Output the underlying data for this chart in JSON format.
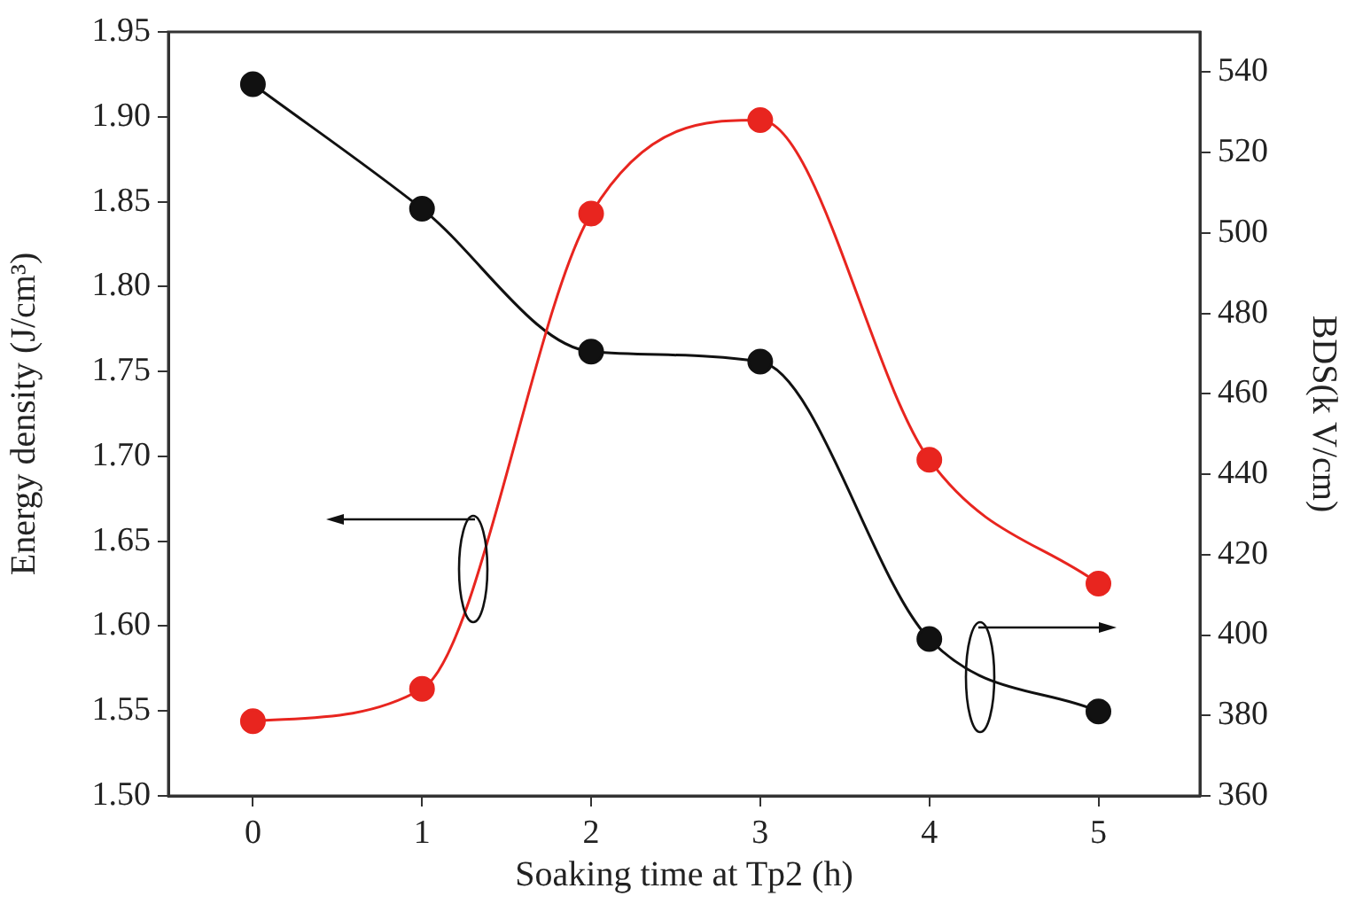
{
  "chart_data": {
    "type": "line",
    "xlabel": "Soaking time at Tp2 (h)",
    "ylabel": "Energy density (J/cm³)",
    "y2label": "BDS(k V/cm)",
    "x": [
      0,
      1,
      2,
      3,
      4,
      5
    ],
    "series": [
      {
        "color": "#e8251f",
        "values": [
          1.544,
          1.563,
          1.843,
          1.898,
          1.698,
          1.625
        ]
      },
      {
        "color": "#111111",
        "axis": "y2",
        "values": [
          537,
          506,
          470.5,
          468,
          399,
          381
        ]
      }
    ],
    "xlim": [
      -0.5,
      5.6
    ],
    "xticks": [
      0,
      1,
      2,
      3,
      4,
      5
    ],
    "ylim": [
      1.5,
      1.95
    ],
    "yticks": [
      {
        "value": 1.5,
        "label": "1.50"
      },
      1.55,
      {
        "value": 1.6,
        "label": "1.60"
      },
      1.65,
      {
        "value": 1.7,
        "label": "1.70"
      },
      1.75,
      {
        "value": 1.8,
        "label": "1.80"
      },
      1.85,
      {
        "value": 1.9,
        "label": "1.90"
      },
      1.95
    ],
    "y2lim": [
      360,
      550
    ],
    "y2ticks": [
      360,
      380,
      400,
      420,
      440,
      460,
      480,
      500,
      520,
      540
    ],
    "marker": "circle",
    "line_style": "solid",
    "grid": false,
    "legend": false
  }
}
